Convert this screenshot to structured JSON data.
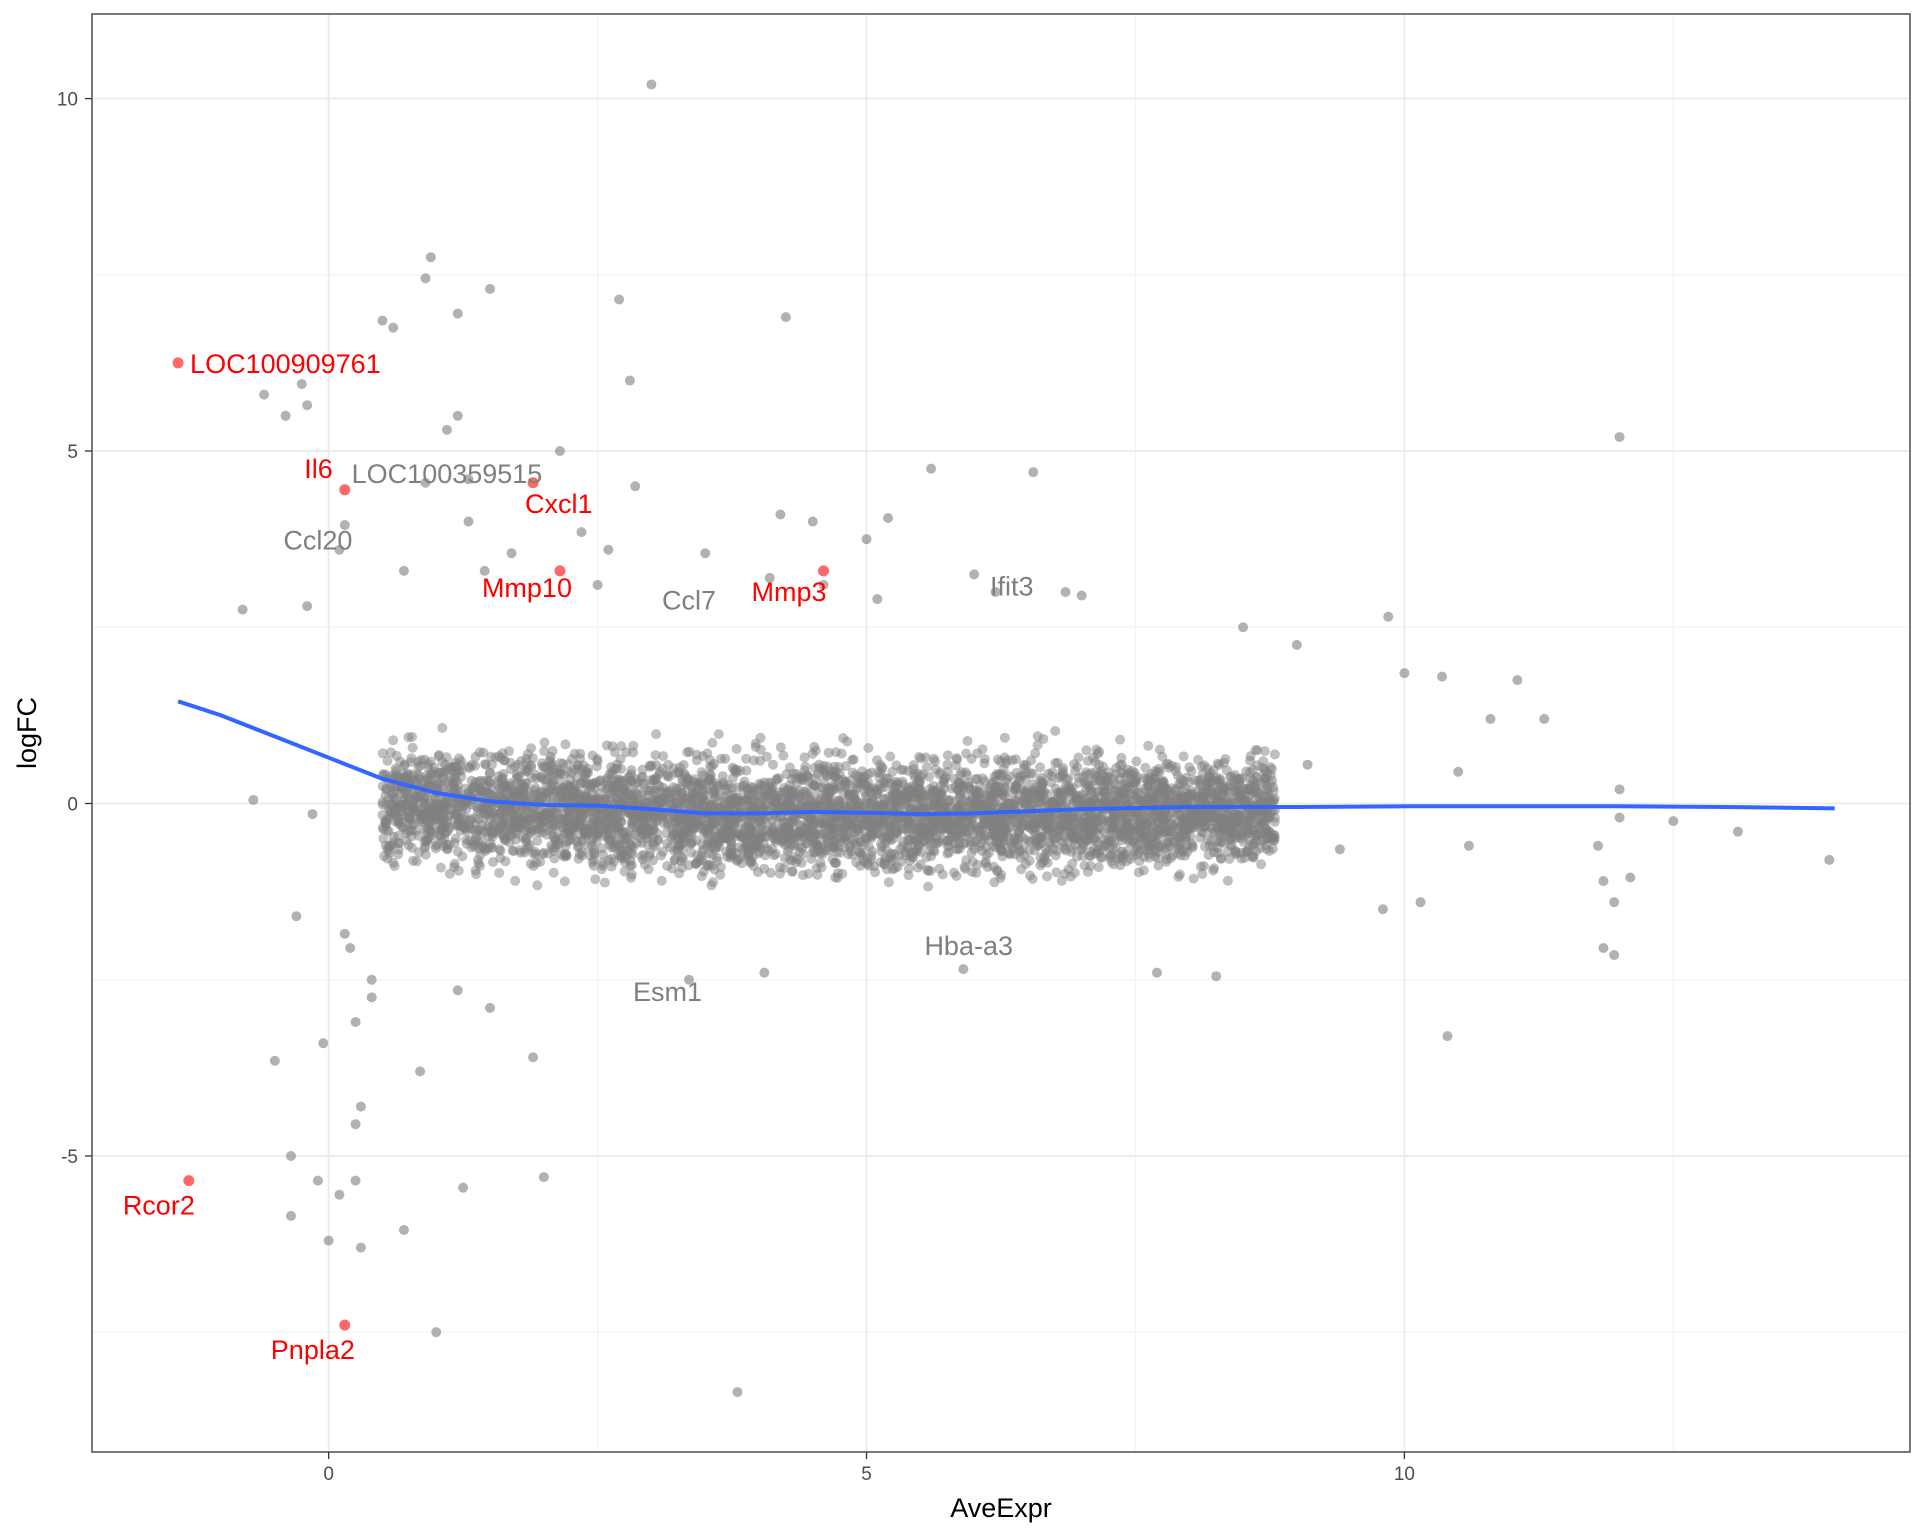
{
  "colors": {
    "background": "#ffffff",
    "grid_major": "#ebebeb",
    "grid_minor": "#f3f3f3",
    "panel_border": "#333333",
    "point": "#7f7f7f",
    "highlight": "#ff4d4d",
    "highlight_label": "#ff0000",
    "label": "#7f7f7f",
    "trend": "#3366ff"
  },
  "chart_data": {
    "type": "scatter",
    "xlabel": "AveExpr",
    "ylabel": "logFC",
    "xlim": [
      -2.2,
      14.7
    ],
    "ylim": [
      -9.2,
      11.2
    ],
    "x_ticks": [
      0,
      5,
      10
    ],
    "y_ticks": [
      -5,
      0,
      5,
      10
    ],
    "x_tick_labels": [
      "0",
      "5",
      "10"
    ],
    "y_tick_labels": [
      "-5",
      "0",
      "5",
      "10"
    ],
    "grid": true,
    "bulk_cloud": {
      "description_note": "dense band of roughly 15000 grey points",
      "x_range": [
        0.5,
        8.8
      ],
      "y_spread": 1.0
    },
    "points": [
      [
        3.0,
        10.2
      ],
      [
        0.95,
        7.75
      ],
      [
        0.9,
        7.45
      ],
      [
        1.5,
        7.3
      ],
      [
        2.7,
        7.15
      ],
      [
        1.2,
        6.95
      ],
      [
        4.25,
        6.9
      ],
      [
        0.5,
        6.85
      ],
      [
        0.6,
        6.75
      ],
      [
        2.8,
        6.0
      ],
      [
        -0.6,
        5.8
      ],
      [
        -0.25,
        5.95
      ],
      [
        -0.2,
        5.65
      ],
      [
        -0.4,
        5.5
      ],
      [
        1.2,
        5.5
      ],
      [
        1.1,
        5.3
      ],
      [
        12.0,
        5.2
      ],
      [
        2.15,
        5.0
      ],
      [
        5.6,
        4.75
      ],
      [
        6.55,
        4.7
      ],
      [
        0.9,
        4.55
      ],
      [
        1.3,
        4.6
      ],
      [
        2.85,
        4.5
      ],
      [
        4.2,
        4.1
      ],
      [
        5.2,
        4.05
      ],
      [
        4.5,
        4.0
      ],
      [
        1.3,
        4.0
      ],
      [
        0.15,
        3.95
      ],
      [
        2.35,
        3.85
      ],
      [
        5.0,
        3.75
      ],
      [
        2.6,
        3.6
      ],
      [
        3.5,
        3.55
      ],
      [
        1.7,
        3.55
      ],
      [
        0.1,
        3.6
      ],
      [
        0.7,
        3.3
      ],
      [
        6.0,
        3.25
      ],
      [
        1.45,
        3.3
      ],
      [
        2.5,
        3.1
      ],
      [
        4.6,
        3.1
      ],
      [
        6.2,
        3.0
      ],
      [
        6.85,
        3.0
      ],
      [
        7.0,
        2.95
      ],
      [
        5.1,
        2.9
      ],
      [
        4.1,
        3.2
      ],
      [
        -0.2,
        2.8
      ],
      [
        -0.8,
        2.75
      ],
      [
        8.5,
        2.5
      ],
      [
        9.85,
        2.65
      ],
      [
        9.0,
        2.25
      ],
      [
        10.0,
        1.85
      ],
      [
        11.05,
        1.75
      ],
      [
        10.35,
        1.8
      ],
      [
        10.8,
        1.2
      ],
      [
        11.3,
        1.2
      ],
      [
        12.0,
        0.2
      ],
      [
        12.0,
        -0.2
      ],
      [
        12.5,
        -0.25
      ],
      [
        13.1,
        -0.4
      ],
      [
        13.95,
        -0.8
      ],
      [
        11.8,
        -0.6
      ],
      [
        11.85,
        -1.1
      ],
      [
        11.95,
        -1.4
      ],
      [
        11.85,
        -2.05
      ],
      [
        11.95,
        -2.15
      ],
      [
        10.4,
        -3.3
      ],
      [
        10.15,
        -1.4
      ],
      [
        9.8,
        -1.5
      ],
      [
        -0.3,
        -1.6
      ],
      [
        -0.15,
        -0.15
      ],
      [
        -0.7,
        0.05
      ],
      [
        0.15,
        -1.85
      ],
      [
        0.2,
        -2.05
      ],
      [
        0.4,
        -2.5
      ],
      [
        0.4,
        -2.75
      ],
      [
        0.25,
        -3.1
      ],
      [
        -0.05,
        -3.4
      ],
      [
        -0.5,
        -3.65
      ],
      [
        0.85,
        -3.8
      ],
      [
        1.9,
        -3.6
      ],
      [
        1.2,
        -2.65
      ],
      [
        1.5,
        -2.9
      ],
      [
        0.3,
        -4.3
      ],
      [
        0.25,
        -4.55
      ],
      [
        -0.35,
        -5.0
      ],
      [
        -0.1,
        -5.35
      ],
      [
        0.25,
        -5.35
      ],
      [
        0.1,
        -5.55
      ],
      [
        1.25,
        -5.45
      ],
      [
        2.0,
        -5.3
      ],
      [
        -0.35,
        -5.85
      ],
      [
        0.7,
        -6.05
      ],
      [
        0.0,
        -6.2
      ],
      [
        0.3,
        -6.3
      ],
      [
        1.0,
        -7.5
      ],
      [
        3.8,
        -8.35
      ],
      [
        5.9,
        -2.35
      ],
      [
        8.25,
        -2.45
      ],
      [
        7.7,
        -2.4
      ],
      [
        4.05,
        -2.4
      ],
      [
        3.35,
        -2.5
      ],
      [
        9.1,
        0.55
      ],
      [
        10.5,
        0.45
      ],
      [
        10.6,
        -0.6
      ],
      [
        9.4,
        -0.65
      ],
      [
        12.1,
        -1.05
      ]
    ],
    "highlighted_points": [
      {
        "label": "LOC100909761",
        "x": -1.4,
        "y": 6.25
      },
      {
        "label": "Il6",
        "x": 0.15,
        "y": 4.45
      },
      {
        "label": "Cxcl1",
        "x": 1.9,
        "y": 4.55
      },
      {
        "label": "Mmp10",
        "x": 2.15,
        "y": 3.3
      },
      {
        "label": "Mmp3",
        "x": 4.6,
        "y": 3.3
      },
      {
        "label": "Rcor2",
        "x": -1.3,
        "y": -5.35
      },
      {
        "label": "Pnpla2",
        "x": 0.15,
        "y": -7.4
      }
    ],
    "grey_labels": [
      {
        "label": "LOC100359515",
        "x": 1.1,
        "y": 4.55
      },
      {
        "label": "Ccl20",
        "x": -0.1,
        "y": 3.6
      },
      {
        "label": "Ccl7",
        "x": 3.35,
        "y": 2.75
      },
      {
        "label": "Ifit3",
        "x": 6.35,
        "y": 2.95
      },
      {
        "label": "Hba-a3",
        "x": 5.95,
        "y": -2.15
      },
      {
        "label": "Esm1",
        "x": 3.15,
        "y": -2.8
      }
    ],
    "trend_line": {
      "x": [
        -1.4,
        -1.0,
        -0.5,
        0.0,
        0.5,
        1.0,
        1.5,
        2.0,
        2.5,
        3.0,
        3.5,
        4.0,
        4.5,
        5.0,
        5.5,
        6.0,
        7.0,
        8.0,
        9.0,
        10.0,
        11.0,
        12.0,
        13.0,
        14.0
      ],
      "y": [
        1.45,
        1.25,
        0.95,
        0.65,
        0.35,
        0.15,
        0.03,
        -0.02,
        -0.03,
        -0.08,
        -0.14,
        -0.14,
        -0.12,
        -0.13,
        -0.15,
        -0.14,
        -0.08,
        -0.05,
        -0.05,
        -0.04,
        -0.04,
        -0.04,
        -0.05,
        -0.07
      ]
    }
  }
}
